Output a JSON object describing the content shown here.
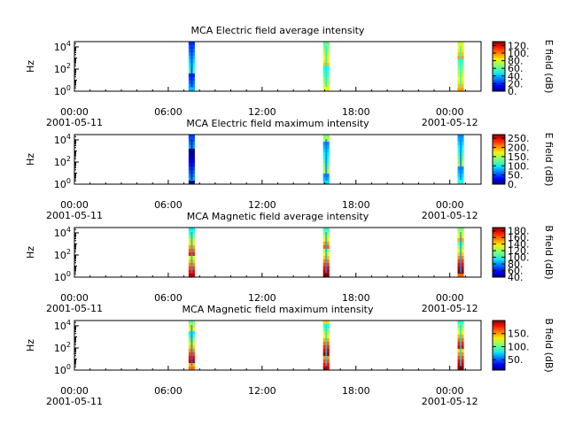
{
  "chart_data": [
    {
      "type": "heatmap",
      "title": "MCA  Electric field average intensity",
      "ylabel": "Hz",
      "y_scale": "log",
      "ylim": [
        1,
        30000
      ],
      "y_ticks": [
        {
          "base": "10",
          "exp": "0"
        },
        {
          "base": "10",
          "exp": "2"
        },
        {
          "base": "10",
          "exp": "4"
        }
      ],
      "x_ticks": [
        "00:00",
        "06:00",
        "12:00",
        "18:00",
        "00:00"
      ],
      "x_dates": [
        "2001-05-11",
        "2001-05-12"
      ],
      "xlim_hours": [
        0,
        26
      ],
      "colorbar": {
        "label": "E field (dB)",
        "min": 0,
        "max": 130,
        "ticks": [
          "0.",
          "20.",
          "40.",
          "60.",
          "80.",
          "100.",
          "120."
        ]
      },
      "passes": [
        {
          "start_hour": 7.3,
          "end_hour": 7.7,
          "dominant_db": 40
        },
        {
          "start_hour": 15.9,
          "end_hour": 16.3,
          "dominant_db": 70
        },
        {
          "start_hour": 24.5,
          "end_hour": 24.9,
          "dominant_db": 75
        }
      ]
    },
    {
      "type": "heatmap",
      "title": "MCA  Electric field maximum intensity",
      "ylabel": "Hz",
      "y_scale": "log",
      "ylim": [
        1,
        30000
      ],
      "y_ticks": [
        {
          "base": "10",
          "exp": "0"
        },
        {
          "base": "10",
          "exp": "2"
        },
        {
          "base": "10",
          "exp": "4"
        }
      ],
      "x_ticks": [
        "00:00",
        "06:00",
        "12:00",
        "18:00",
        "00:00"
      ],
      "x_dates": [
        "2001-05-11",
        "2001-05-12"
      ],
      "xlim_hours": [
        0,
        26
      ],
      "colorbar": {
        "label": "E field (dB)",
        "min": 0,
        "max": 270,
        "ticks": [
          "0.",
          "50.",
          "100.",
          "150.",
          "200.",
          "250."
        ]
      },
      "passes": [
        {
          "start_hour": 7.3,
          "end_hour": 7.7,
          "dominant_db": 40
        },
        {
          "start_hour": 15.9,
          "end_hour": 16.3,
          "dominant_db": 110
        },
        {
          "start_hour": 24.5,
          "end_hour": 24.9,
          "dominant_db": 110
        }
      ]
    },
    {
      "type": "heatmap",
      "title": "MCA  Magnetic field average intensity",
      "ylabel": "Hz",
      "y_scale": "log",
      "ylim": [
        1,
        30000
      ],
      "y_ticks": [
        {
          "base": "10",
          "exp": "0"
        },
        {
          "base": "10",
          "exp": "2"
        },
        {
          "base": "10",
          "exp": "4"
        }
      ],
      "x_ticks": [
        "00:00",
        "06:00",
        "12:00",
        "18:00",
        "00:00"
      ],
      "x_dates": [
        "2001-05-11",
        "2001-05-12"
      ],
      "xlim_hours": [
        0,
        26
      ],
      "colorbar": {
        "label": "B field (dB)",
        "min": 40,
        "max": 190,
        "ticks": [
          "40.",
          "60.",
          "80.",
          "100.",
          "120.",
          "140.",
          "160.",
          "180."
        ]
      },
      "passes": [
        {
          "start_hour": 7.3,
          "end_hour": 7.7,
          "dominant_db": 110
        },
        {
          "start_hour": 15.9,
          "end_hour": 16.3,
          "dominant_db": 110
        },
        {
          "start_hour": 24.5,
          "end_hour": 24.9,
          "dominant_db": 110
        }
      ]
    },
    {
      "type": "heatmap",
      "title": "MCA  Magnetic field maximum intensity",
      "ylabel": "Hz",
      "y_scale": "log",
      "ylim": [
        1,
        30000
      ],
      "y_ticks": [
        {
          "base": "10",
          "exp": "0"
        },
        {
          "base": "10",
          "exp": "2"
        },
        {
          "base": "10",
          "exp": "4"
        }
      ],
      "x_ticks": [
        "00:00",
        "06:00",
        "12:00",
        "18:00",
        "00:00"
      ],
      "x_dates": [
        "2001-05-11",
        "2001-05-12"
      ],
      "xlim_hours": [
        0,
        26
      ],
      "colorbar": {
        "label": "B field (dB)",
        "min": 10,
        "max": 200,
        "ticks": [
          "50.",
          "100.",
          "150."
        ]
      },
      "passes": [
        {
          "start_hour": 7.3,
          "end_hour": 7.7,
          "dominant_db": 90
        },
        {
          "start_hour": 15.9,
          "end_hour": 16.3,
          "dominant_db": 110
        },
        {
          "start_hour": 24.5,
          "end_hour": 24.9,
          "dominant_db": 110
        }
      ]
    }
  ]
}
